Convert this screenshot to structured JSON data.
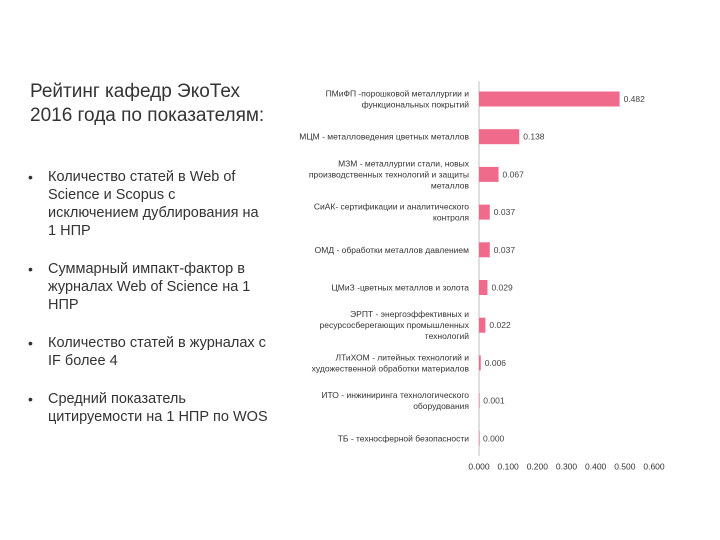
{
  "slide": {
    "title": "Рейтинг кафедр ЭкоТех 2016 года по показателям:",
    "bullets": [
      "Количество статей в Web of Science и Scopus с исключением дублирования на 1 НПР",
      "Суммарный импакт-фактор в журналах Web of Science на 1 НПР",
      "Количество статей в журналах с IF более 4",
      "Средний показатель цитируемости на 1 НПР по WOS"
    ],
    "bullet_symbol": "•"
  },
  "chart_data": {
    "type": "bar",
    "orientation": "horizontal",
    "categories": [
      [
        "ПМиФП  -порошковой металлургии и",
        "функциональных покрытий"
      ],
      [
        "МЦМ - металловедения цветных металлов"
      ],
      [
        "МЗМ  - металлургии стали, новых",
        "производственных технологий и защиты",
        "металлов"
      ],
      [
        "СиАК- сертификации и аналитического",
        "контроля"
      ],
      [
        "ОМД - обработки металлов давлением"
      ],
      [
        "ЦМиЗ -цветных металлов и золота"
      ],
      [
        "ЭРПТ - энергоэффективных и",
        "ресурсосберегающих промышленных",
        "технологий"
      ],
      [
        "ЛТиХОМ - литейных технологий и",
        "художественной обработки материалов"
      ],
      [
        "ИТО -  инжиниринга технологического",
        "оборудования"
      ],
      [
        "ТБ - техносферной безопасности"
      ]
    ],
    "values": [
      0.482,
      0.138,
      0.067,
      0.037,
      0.037,
      0.029,
      0.022,
      0.006,
      0.001,
      0.0
    ],
    "value_labels": [
      "0.482",
      "0.138",
      "0.067",
      "0.037",
      "0.037",
      "0.029",
      "0.022",
      "0.006",
      "0.001",
      "0.000"
    ],
    "xlim": [
      0,
      0.6
    ],
    "x_ticks": [
      "0.000",
      "0.100",
      "0.200",
      "0.300",
      "0.400",
      "0.500",
      "0.600"
    ],
    "bar_color": "#f06a8c",
    "grid": false,
    "legend": "none"
  }
}
